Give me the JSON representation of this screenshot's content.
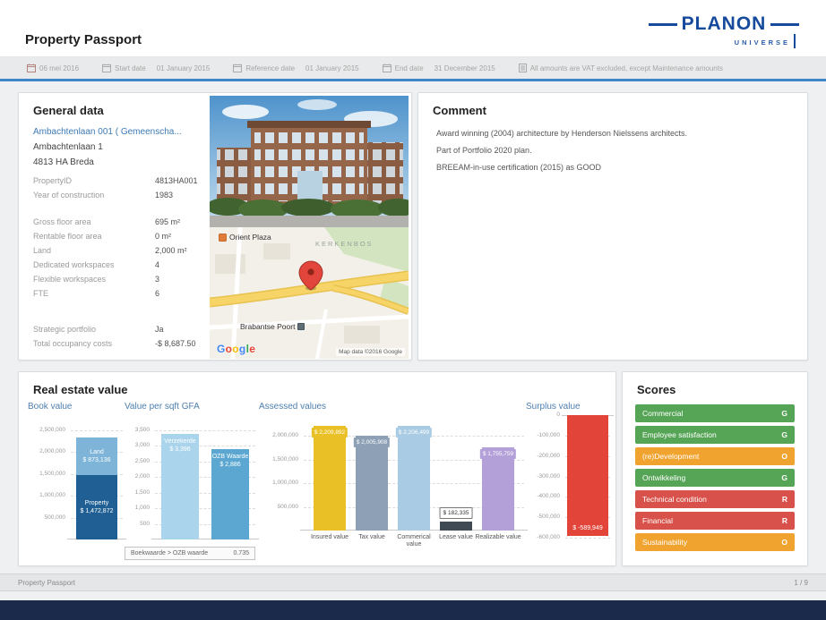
{
  "header": {
    "title": "Property Passport",
    "logo": {
      "name": "PLANON",
      "sub": "UNIVERSE"
    }
  },
  "toolbar": {
    "today": "06 mei 2016",
    "items": [
      {
        "label": "Start date",
        "value": "01 January 2015"
      },
      {
        "label": "Reference date",
        "value": "01 January 2015"
      },
      {
        "label": "End date",
        "value": "31 December 2015"
      }
    ],
    "note": "All amounts are VAT excluded, except Maintenance amounts"
  },
  "general": {
    "title": "General data",
    "link": "Ambachtenlaan 001 ( Gemeenscha...",
    "address1": "Ambachtenlaan 1",
    "address2": "4813 HA Breda",
    "groups": [
      [
        {
          "label": "PropertyID",
          "value": "4813HA001"
        },
        {
          "label": "Year of construction",
          "value": "1983"
        }
      ],
      [
        {
          "label": "Gross floor area",
          "value": "695 m²"
        },
        {
          "label": "Rentable floor area",
          "value": "0 m²"
        },
        {
          "label": "Land",
          "value": "2,000 m²"
        },
        {
          "label": "Dedicated workspaces",
          "value": "4"
        },
        {
          "label": "Flexible workspaces",
          "value": "3"
        },
        {
          "label": "FTE",
          "value": "6"
        }
      ],
      [
        {
          "label": "Strategic portfolio",
          "value": "Ja"
        },
        {
          "label": "Total occupancy costs",
          "value": "-$ 8,687.50"
        }
      ]
    ]
  },
  "map": {
    "labels": {
      "poi1": "Orient Plaza",
      "area": "KERKENBOS",
      "poi2": "Brabantse Poort",
      "google": "Google",
      "attribution": "Map data ©2016 Google"
    },
    "google_colors": [
      "#4285F4",
      "#EA4335",
      "#FBBC05",
      "#4285F4",
      "#34A853",
      "#EA4335"
    ]
  },
  "comment": {
    "title": "Comment",
    "lines": [
      "Award winning (2004) architecture by Henderson Nielssens architects.",
      "Part of Portfolio 2020 plan.",
      "BREEAM-in-use certification (2015) as GOOD"
    ]
  },
  "value_section": {
    "title": "Real estate value"
  },
  "chart_data": [
    {
      "type": "bar",
      "variant": "stacked",
      "title": "Book value",
      "ylim": [
        0,
        2500000
      ],
      "ticks": [
        500000,
        1000000,
        1500000,
        2000000,
        2500000
      ],
      "tick_labels": [
        "500,000",
        "1,000,000",
        "1,500,000",
        "2,000,000",
        "2,500,000"
      ],
      "series": [
        {
          "name": "Property",
          "value": 1472872,
          "label_lines": [
            "Property",
            "$ 1,472,872"
          ],
          "color": "#1f5f93"
        },
        {
          "name": "Land",
          "value": 873136,
          "label_lines": [
            "Land",
            "$ 873,136"
          ],
          "color": "#7db4d8"
        }
      ]
    },
    {
      "type": "bar",
      "title": "Value per sqft GFA",
      "ylim": [
        0,
        3500
      ],
      "ticks": [
        500,
        1000,
        1500,
        2000,
        2500,
        3000,
        3500
      ],
      "tick_labels": [
        "500",
        "1,000",
        "1,500",
        "2,000",
        "2,500",
        "3,000",
        "3,500"
      ],
      "bars": [
        {
          "category": "Verzekerde",
          "value": 3396,
          "label_lines": [
            "Verzekerde",
            "$ 3,396"
          ],
          "color": "#aad4ec"
        },
        {
          "category": "OZB Waarde",
          "value": 2886,
          "label_lines": [
            "OZB Waarde",
            "$ 2,886"
          ],
          "color": "#5ba7d1"
        }
      ],
      "footnote": {
        "label": "Boekwaarde > OZB waarde",
        "value": "0.735"
      }
    },
    {
      "type": "bar",
      "title": "Assessed values",
      "ylim": [
        0,
        2000000
      ],
      "ticks": [
        500000,
        1000000,
        1500000,
        2000000
      ],
      "tick_labels": [
        "500,000",
        "1,000,000",
        "1,500,000",
        "2,000,000"
      ],
      "show_categories": true,
      "bars": [
        {
          "category": "Insured value",
          "value": 2209892,
          "value_label": "$ 2,209,892",
          "color": "#e9c126"
        },
        {
          "category": "Tax value",
          "value": 2005908,
          "value_label": "$ 2,005,908",
          "color": "#8da0b5"
        },
        {
          "category": "Commerical value",
          "value": 2206499,
          "value_label": "$ 2,206,499",
          "color": "#a9cbe3"
        },
        {
          "category": "Lease value",
          "value": 182335,
          "value_label": "$ 182,335",
          "color": "#3f4a55",
          "label_style": "outlined"
        },
        {
          "category": "Realizable value",
          "value": 1755759,
          "value_label": "$ 1,755,759",
          "color": "#b4a0d8"
        }
      ]
    },
    {
      "type": "bar",
      "variant": "negative",
      "title": "Surplus value",
      "ylim": [
        -600000,
        0
      ],
      "ticks": [
        0,
        -100000,
        -200000,
        -300000,
        -400000,
        -500000,
        -600000
      ],
      "tick_labels": [
        "0",
        "-100,000",
        "-200,000",
        "-300,000",
        "-400,000",
        "-500,000",
        "-600,000"
      ],
      "bars": [
        {
          "category": "",
          "value": -589949,
          "value_label": "$ -589,949",
          "color": "#e2443a"
        }
      ]
    }
  ],
  "scores": {
    "title": "Scores",
    "rows": [
      {
        "label": "Commercial",
        "grade": "G",
        "color": "#56a556"
      },
      {
        "label": "Employee satisfaction",
        "grade": "G",
        "color": "#56a556"
      },
      {
        "label": "(re)Development",
        "grade": "O",
        "color": "#f1a32f"
      },
      {
        "label": "Ontwikkeling",
        "grade": "G",
        "color": "#56a556"
      },
      {
        "label": "Technical condition",
        "grade": "R",
        "color": "#d8514a"
      },
      {
        "label": "Financial",
        "grade": "R",
        "color": "#d8514a"
      },
      {
        "label": "Sustainability",
        "grade": "O",
        "color": "#f1a32f"
      }
    ]
  },
  "footer": {
    "left": "Property Passport",
    "right": "1 / 9"
  },
  "theme": {
    "accent_blue": "#3e86c8",
    "navy_bar": "#1b2a4a",
    "planon_blue": "#164a9c"
  }
}
